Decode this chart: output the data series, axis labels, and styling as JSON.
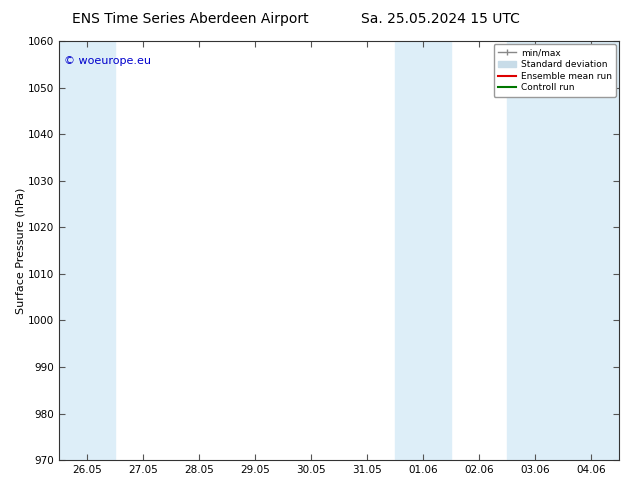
{
  "title": "ENS Time Series Aberdeen Airport",
  "title2": "Sa. 25.05.2024 15 UTC",
  "ylabel": "Surface Pressure (hPa)",
  "ylim": [
    970,
    1060
  ],
  "yticks": [
    970,
    980,
    990,
    1000,
    1010,
    1020,
    1030,
    1040,
    1050,
    1060
  ],
  "x_tick_labels": [
    "26.05",
    "27.05",
    "28.05",
    "29.05",
    "30.05",
    "31.05",
    "01.06",
    "02.06",
    "03.06",
    "04.06"
  ],
  "x_tick_positions": [
    0,
    1,
    2,
    3,
    4,
    5,
    6,
    7,
    8,
    9
  ],
  "xlim": [
    -0.5,
    9.5
  ],
  "bg_color": "#ffffff",
  "plot_bg_color": "#ffffff",
  "shaded_band_color": "#ddeef8",
  "shaded_bands": [
    {
      "x_start": -0.5,
      "x_end": 0.5
    },
    {
      "x_start": 5.5,
      "x_end": 6.5
    },
    {
      "x_start": 7.5,
      "x_end": 9.5
    }
  ],
  "legend_labels": [
    "min/max",
    "Standard deviation",
    "Ensemble mean run",
    "Controll run"
  ],
  "legend_colors": [
    "#888888",
    "#c8dce8",
    "#dd0000",
    "#007700"
  ],
  "watermark_text": "© woeurope.eu",
  "watermark_color": "#0000cc",
  "watermark_fontsize": 8,
  "title_fontsize": 10,
  "axis_label_fontsize": 8,
  "tick_fontsize": 7.5
}
